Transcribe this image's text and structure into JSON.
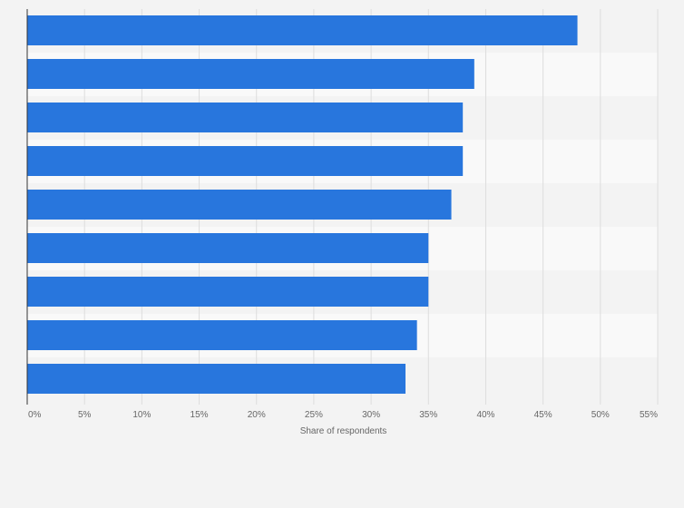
{
  "chart_data": {
    "type": "bar",
    "orientation": "horizontal",
    "categories": [
      "",
      "",
      "",
      "",
      "",
      "",
      "",
      "",
      ""
    ],
    "values": [
      48,
      39,
      38,
      38,
      37,
      35,
      35,
      34,
      33
    ],
    "xlim": [
      0,
      55
    ],
    "ticks": [
      "0%",
      "5%",
      "10%",
      "15%",
      "20%",
      "25%",
      "30%",
      "35%",
      "40%",
      "45%",
      "50%",
      "55%"
    ],
    "xlabel": "Share of respondents",
    "ylabel": "",
    "title": "",
    "grid": true,
    "colors": {
      "bar": "#2876dd",
      "grid": "#dddddd",
      "axis": "#333333",
      "tick_text": "#666666",
      "band_light": "#f9f9f9",
      "band_dark": "#f3f3f3"
    }
  }
}
